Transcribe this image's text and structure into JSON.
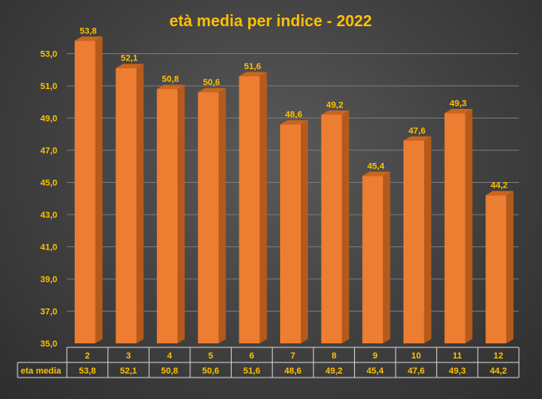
{
  "chart_data": {
    "type": "bar",
    "title": "età media per indice - 2022",
    "categories": [
      "2",
      "3",
      "4",
      "5",
      "6",
      "7",
      "8",
      "9",
      "10",
      "11",
      "12"
    ],
    "series": [
      {
        "name": "eta media",
        "values": [
          53.8,
          52.1,
          50.8,
          50.6,
          51.6,
          48.6,
          49.2,
          45.4,
          47.6,
          49.3,
          44.2
        ]
      }
    ],
    "data_labels": [
      "53,8",
      "52,1",
      "50,8",
      "50,6",
      "51,6",
      "48,6",
      "49,2",
      "45,4",
      "47,6",
      "49,3",
      "44,2"
    ],
    "y_ticks": [
      "35,0",
      "37,0",
      "39,0",
      "41,0",
      "43,0",
      "45,0",
      "47,0",
      "49,0",
      "51,0",
      "53,0"
    ],
    "ylim": [
      35,
      53
    ],
    "grid": true,
    "data_table": true,
    "colors": {
      "bar_front": "#ed7d31",
      "bar_side": "#b55a1b",
      "bar_top": "#c8651f",
      "text": "#ffc000",
      "grid": "#7a7a7a"
    }
  }
}
